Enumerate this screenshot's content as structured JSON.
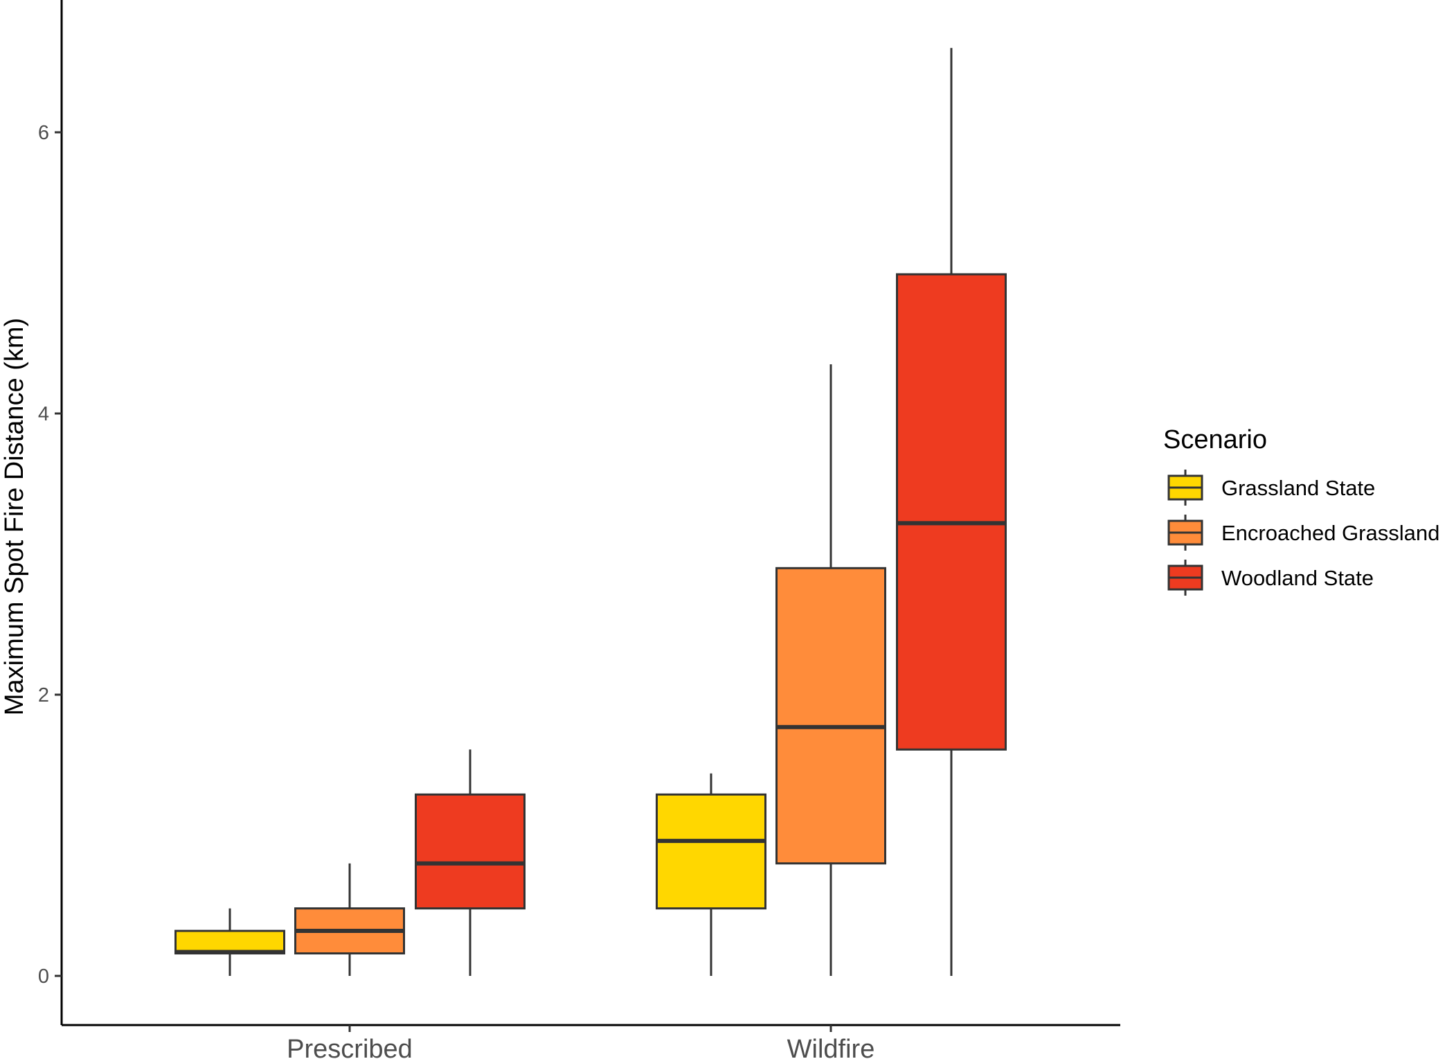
{
  "chart_data": {
    "type": "box",
    "ylabel": "Maximum Spot Fire Distance (km)",
    "xlabel": "",
    "ylim": [
      -0.3,
      6.9
    ],
    "yticks": [
      0,
      2,
      4,
      6
    ],
    "categories": [
      "Prescribed",
      "Wildfire"
    ],
    "legend": {
      "title": "Scenario",
      "position": "right"
    },
    "grid": false,
    "series": [
      {
        "name": "Grassland State",
        "color": "#FFD700",
        "boxes": [
          {
            "min": 0.0,
            "q1": 0.16,
            "median": 0.17,
            "q3": 0.32,
            "max": 0.48
          },
          {
            "min": 0.0,
            "q1": 0.48,
            "median": 0.96,
            "q3": 1.29,
            "max": 1.44
          }
        ]
      },
      {
        "name": "Encroached Grassland",
        "color": "#FF8C3A",
        "boxes": [
          {
            "min": 0.0,
            "q1": 0.16,
            "median": 0.32,
            "q3": 0.48,
            "max": 0.8
          },
          {
            "min": 0.0,
            "q1": 0.8,
            "median": 1.77,
            "q3": 2.9,
            "max": 4.35
          }
        ]
      },
      {
        "name": "Woodland State",
        "color": "#EE3B20",
        "boxes": [
          {
            "min": 0.0,
            "q1": 0.48,
            "median": 0.8,
            "q3": 1.29,
            "max": 1.61
          },
          {
            "min": 0.0,
            "q1": 1.61,
            "median": 3.22,
            "q3": 4.99,
            "max": 6.6
          }
        ]
      }
    ]
  }
}
